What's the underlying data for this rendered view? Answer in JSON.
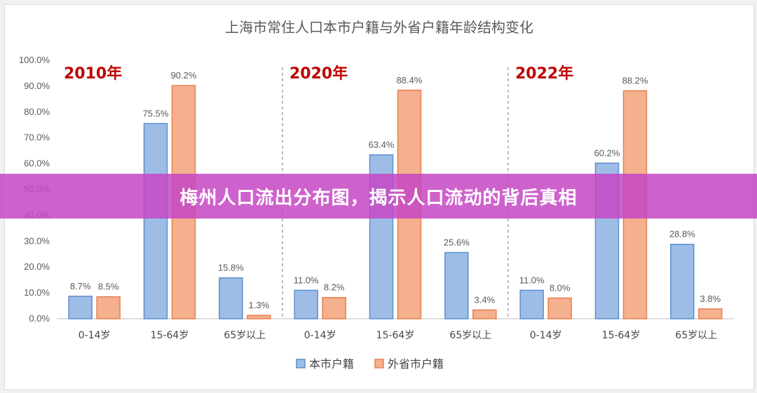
{
  "banner": {
    "title": "梅州人口流出分布图，揭示人口流动的背后真相"
  },
  "colors": {
    "blue_fill": "#9dbde6",
    "blue_stroke": "#5b8fce",
    "orange_fill": "#f5b08e",
    "orange_stroke": "#e8804f",
    "year_label": "#c00000",
    "banner": "#c646c4"
  },
  "chart_data": {
    "type": "bar",
    "title": "上海市常住人口本市户籍与外省户籍年龄结构变化",
    "ylim": [
      0,
      100
    ],
    "yticks": [
      0,
      10,
      20,
      30,
      40,
      50,
      60,
      70,
      80,
      90,
      100
    ],
    "ytick_labels": [
      "0.0%",
      "10.0%",
      "20.0%",
      "30.0%",
      "40.0%",
      "50.0%",
      "60.0%",
      "70.0%",
      "80.0%",
      "90.0%",
      "100.0%"
    ],
    "grid": false,
    "legend_position": "bottom",
    "series_names": [
      "本市户籍",
      "外省市户籍"
    ],
    "groups": [
      {
        "year": "2010年",
        "categories": [
          "0-14岁",
          "15-64岁",
          "65岁以上"
        ],
        "series": [
          {
            "name": "本市户籍",
            "values": [
              8.7,
              75.5,
              15.8
            ],
            "labels": [
              "8.7%",
              "75.5%",
              "15.8%"
            ]
          },
          {
            "name": "外省市户籍",
            "values": [
              8.5,
              90.2,
              1.3
            ],
            "labels": [
              "8.5%",
              "90.2%",
              "1.3%"
            ]
          }
        ]
      },
      {
        "year": "2020年",
        "categories": [
          "0-14岁",
          "15-64岁",
          "65岁以上"
        ],
        "series": [
          {
            "name": "本市户籍",
            "values": [
              11.0,
              63.4,
              25.6
            ],
            "labels": [
              "11.0%",
              "63.4%",
              "25.6%"
            ]
          },
          {
            "name": "外省市户籍",
            "values": [
              8.2,
              88.4,
              3.4
            ],
            "labels": [
              "8.2%",
              "88.4%",
              "3.4%"
            ]
          }
        ]
      },
      {
        "year": "2022年",
        "categories": [
          "0-14岁",
          "15-64岁",
          "65岁以上"
        ],
        "series": [
          {
            "name": "本市户籍",
            "values": [
              11.0,
              60.2,
              28.8
            ],
            "labels": [
              "11.0%",
              "60.2%",
              "28.8%"
            ]
          },
          {
            "name": "外省市户籍",
            "values": [
              8.0,
              88.2,
              3.8
            ],
            "labels": [
              "8.0%",
              "88.2%",
              "3.8%"
            ]
          }
        ]
      }
    ]
  }
}
